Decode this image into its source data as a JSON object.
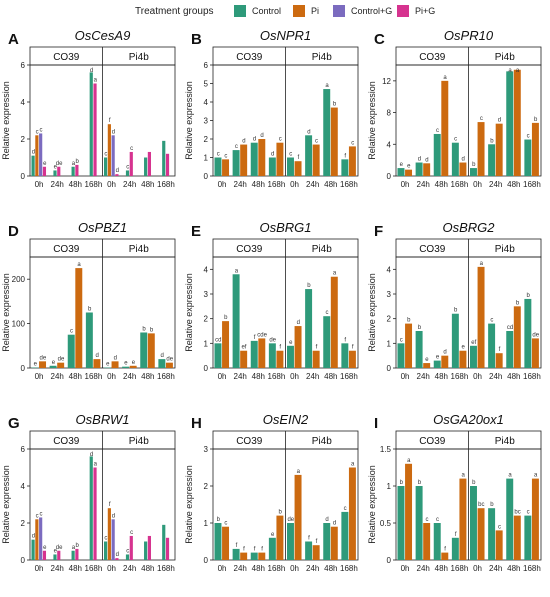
{
  "legend": {
    "title": "Treatment groups",
    "items": [
      {
        "name": "Control",
        "color": "#2e9a7a"
      },
      {
        "name": "Pi",
        "color": "#cc6a10"
      },
      {
        "name": "Control+G",
        "color": "#7b6bbf"
      },
      {
        "name": "Pi+G",
        "color": "#d6338f"
      }
    ]
  },
  "chart_data": [
    {
      "type": "bar",
      "letter": "A",
      "title": "OsCesA9",
      "ylabel": "Relative expression",
      "facets": [
        "CO39",
        "Pi4b"
      ],
      "categories": [
        "0h",
        "24h",
        "48h",
        "168h"
      ],
      "ylim": [
        0,
        6
      ],
      "yticks": [
        0,
        2,
        4,
        6
      ],
      "series": [
        {
          "name": "Control",
          "values": [
            [
              1.1,
              0.3,
              0.5,
              5.6
            ],
            [
              1.0,
              0.3,
              1.0,
              1.9
            ]
          ]
        },
        {
          "name": "Pi",
          "values": [
            [
              2.2,
              null,
              null,
              null
            ],
            [
              2.8,
              null,
              null,
              null
            ]
          ]
        },
        {
          "name": "Control+G",
          "values": [
            [
              2.3,
              null,
              null,
              null
            ],
            [
              2.2,
              null,
              null,
              null
            ]
          ]
        },
        {
          "name": "Pi+G",
          "values": [
            [
              0.5,
              0.5,
              0.6,
              5.0
            ],
            [
              0.1,
              1.3,
              1.3,
              1.2
            ]
          ]
        }
      ],
      "labels": [
        "d",
        "c",
        "c",
        "e",
        "e",
        "de",
        "a",
        "b",
        "d",
        "a",
        "c",
        "f",
        "d",
        "d",
        "c",
        "c"
      ]
    },
    {
      "type": "bar",
      "letter": "B",
      "title": "OsNPR1",
      "ylabel": "Relative expression",
      "facets": [
        "CO39",
        "Pi4b"
      ],
      "categories": [
        "0h",
        "24h",
        "48h",
        "168h"
      ],
      "ylim": [
        0,
        6
      ],
      "yticks": [
        0,
        1,
        2,
        3,
        4,
        5,
        6
      ],
      "series": [
        {
          "name": "Control",
          "values": [
            [
              1.0,
              1.4,
              1.8,
              1.0
            ],
            [
              1.0,
              2.2,
              4.7,
              0.9
            ]
          ]
        },
        {
          "name": "Pi",
          "values": [
            [
              0.9,
              1.7,
              2.0,
              1.8
            ],
            [
              0.8,
              1.7,
              3.7,
              1.6
            ]
          ]
        },
        {
          "name": "Control+G",
          "values": [
            [
              null,
              null,
              null,
              null
            ],
            [
              null,
              null,
              null,
              null
            ]
          ]
        },
        {
          "name": "Pi+G",
          "values": [
            [
              null,
              null,
              null,
              null
            ],
            [
              null,
              null,
              null,
              null
            ]
          ]
        }
      ],
      "labels": [
        "c",
        "c",
        "c",
        "d",
        "d",
        "d",
        "d",
        "c",
        "c",
        "f",
        "d",
        "c",
        "a",
        "b",
        "f",
        "c"
      ]
    },
    {
      "type": "bar",
      "letter": "C",
      "title": "OsPR10",
      "ylabel": "Relative expression",
      "facets": [
        "CO39",
        "Pi4b"
      ],
      "categories": [
        "0h",
        "24h",
        "48h",
        "168h"
      ],
      "ylim": [
        0,
        14
      ],
      "yticks": [
        0,
        4,
        8,
        12
      ],
      "series": [
        {
          "name": "Control",
          "values": [
            [
              1.0,
              1.7,
              5.3,
              4.2
            ],
            [
              1.0,
              4.0,
              13.2,
              4.6
            ]
          ]
        },
        {
          "name": "Pi",
          "values": [
            [
              0.8,
              1.6,
              12.0,
              1.7
            ],
            [
              6.8,
              6.6,
              13.4,
              6.7
            ]
          ]
        },
        {
          "name": "Control+G",
          "values": [
            [
              null,
              null,
              null,
              null
            ],
            [
              null,
              null,
              null,
              null
            ]
          ]
        },
        {
          "name": "Pi+G",
          "values": [
            [
              null,
              null,
              null,
              null
            ],
            [
              null,
              null,
              null,
              null
            ]
          ]
        }
      ],
      "labels": [
        "e",
        "e",
        "d",
        "d",
        "c",
        "a",
        "c",
        "d",
        "b",
        "c",
        "b",
        "d",
        "a",
        "a",
        "c",
        "b"
      ]
    },
    {
      "type": "bar",
      "letter": "D",
      "title": "OsPBZ1",
      "ylabel": "Relative expression",
      "facets": [
        "CO39",
        "Pi4b"
      ],
      "categories": [
        "0h",
        "24h",
        "48h",
        "168h"
      ],
      "ylim": [
        0,
        250
      ],
      "yticks": [
        0,
        100,
        200
      ],
      "series": [
        {
          "name": "Control",
          "values": [
            [
              1,
              5,
              75,
              125
            ],
            [
              1,
              3,
              80,
              20
            ]
          ]
        },
        {
          "name": "Pi",
          "values": [
            [
              15,
              12,
              225,
              20
            ],
            [
              15,
              5,
              78,
              12
            ]
          ]
        },
        {
          "name": "Control+G",
          "values": [
            [
              null,
              null,
              null,
              null
            ],
            [
              null,
              null,
              null,
              null
            ]
          ]
        },
        {
          "name": "Pi+G",
          "values": [
            [
              null,
              null,
              null,
              null
            ],
            [
              null,
              null,
              null,
              null
            ]
          ]
        }
      ],
      "labels": [
        "e",
        "de",
        "e",
        "de",
        "c",
        "a",
        "b",
        "d",
        "e",
        "d",
        "e",
        "e",
        "b",
        "b",
        "d",
        "de"
      ]
    },
    {
      "type": "bar",
      "letter": "E",
      "title": "OsBRG1",
      "ylabel": "Relative expression",
      "facets": [
        "CO39",
        "Pi4b"
      ],
      "categories": [
        "0h",
        "24h",
        "48h",
        "168h"
      ],
      "ylim": [
        0,
        4.5
      ],
      "yticks": [
        0,
        1,
        2,
        3,
        4
      ],
      "series": [
        {
          "name": "Control",
          "values": [
            [
              1.0,
              3.8,
              1.1,
              1.0
            ],
            [
              0.9,
              3.2,
              2.1,
              1.0
            ]
          ]
        },
        {
          "name": "Pi",
          "values": [
            [
              1.9,
              0.7,
              1.2,
              0.7
            ],
            [
              1.7,
              0.7,
              3.7,
              0.7
            ]
          ]
        },
        {
          "name": "Control+G",
          "values": [
            [
              null,
              null,
              null,
              null
            ],
            [
              null,
              null,
              null,
              null
            ]
          ]
        },
        {
          "name": "Pi+G",
          "values": [
            [
              null,
              null,
              null,
              null
            ],
            [
              null,
              null,
              null,
              null
            ]
          ]
        }
      ],
      "labels": [
        "cd",
        "b",
        "a",
        "ef",
        "f",
        "cde",
        "de",
        "f",
        "e",
        "d",
        "b",
        "f",
        "c",
        "a",
        "f",
        "f"
      ]
    },
    {
      "type": "bar",
      "letter": "F",
      "title": "OsBRG2",
      "ylabel": "Relative expression",
      "facets": [
        "CO39",
        "Pi4b"
      ],
      "categories": [
        "0h",
        "24h",
        "48h",
        "168h"
      ],
      "ylim": [
        0,
        4.5
      ],
      "yticks": [
        0,
        1,
        2,
        3,
        4
      ],
      "series": [
        {
          "name": "Control",
          "values": [
            [
              1.0,
              1.5,
              0.3,
              2.2
            ],
            [
              0.9,
              1.8,
              1.5,
              2.8
            ]
          ]
        },
        {
          "name": "Pi",
          "values": [
            [
              1.8,
              0.2,
              0.5,
              0.7
            ],
            [
              4.1,
              0.6,
              2.5,
              1.2
            ]
          ]
        },
        {
          "name": "Control+G",
          "values": [
            [
              null,
              null,
              null,
              null
            ],
            [
              null,
              null,
              null,
              null
            ]
          ]
        },
        {
          "name": "Pi+G",
          "values": [
            [
              null,
              null,
              null,
              null
            ],
            [
              null,
              null,
              null,
              null
            ]
          ]
        }
      ],
      "labels": [
        "c",
        "b",
        "b",
        "e",
        "e",
        "d",
        "b",
        "e",
        "ef",
        "a",
        "c",
        "f",
        "cd",
        "b",
        "b",
        "de"
      ]
    },
    {
      "type": "bar",
      "letter": "G",
      "title": "OsBRW1",
      "ylabel": "Relative expression",
      "facets": [
        "CO39",
        "Pi4b"
      ],
      "categories": [
        "0h",
        "24h",
        "48h",
        "168h"
      ],
      "ylim": [
        0,
        6
      ],
      "yticks": [
        0,
        2,
        4,
        6
      ],
      "series": [
        {
          "name": "Control",
          "values": [
            [
              1.1,
              0.3,
              0.5,
              5.6
            ],
            [
              1.0,
              0.3,
              1.0,
              1.9
            ]
          ]
        },
        {
          "name": "Pi",
          "values": [
            [
              2.2,
              null,
              null,
              null
            ],
            [
              2.8,
              null,
              null,
              null
            ]
          ]
        },
        {
          "name": "Control+G",
          "values": [
            [
              2.3,
              null,
              null,
              null
            ],
            [
              2.2,
              null,
              null,
              null
            ]
          ]
        },
        {
          "name": "Pi+G",
          "values": [
            [
              0.5,
              0.5,
              0.6,
              5.0
            ],
            [
              0.1,
              1.3,
              1.3,
              1.2
            ]
          ]
        }
      ],
      "labels": [
        "d",
        "c",
        "c",
        "e",
        "e",
        "de",
        "a",
        "b",
        "d",
        "a",
        "c",
        "f",
        "d",
        "d",
        "c",
        "c"
      ]
    },
    {
      "type": "bar",
      "letter": "H",
      "title": "OsEIN2",
      "ylabel": "Relative expression",
      "facets": [
        "CO39",
        "Pi4b"
      ],
      "categories": [
        "0h",
        "24h",
        "48h",
        "168h"
      ],
      "ylim": [
        0,
        3
      ],
      "yticks": [
        0,
        1,
        2,
        3
      ],
      "series": [
        {
          "name": "Control",
          "values": [
            [
              1.0,
              0.3,
              0.2,
              0.6
            ],
            [
              1.0,
              0.5,
              1.0,
              1.3
            ]
          ]
        },
        {
          "name": "Pi",
          "values": [
            [
              0.9,
              0.2,
              0.2,
              1.2
            ],
            [
              2.3,
              0.4,
              0.9,
              2.5
            ]
          ]
        },
        {
          "name": "Control+G",
          "values": [
            [
              null,
              null,
              null,
              null
            ],
            [
              null,
              null,
              null,
              null
            ]
          ]
        },
        {
          "name": "Pi+G",
          "values": [
            [
              null,
              null,
              null,
              null
            ],
            [
              null,
              null,
              null,
              null
            ]
          ]
        }
      ],
      "labels": [
        "b",
        "c",
        "f",
        "f",
        "f",
        "f",
        "e",
        "b",
        "de",
        "a",
        "f",
        "f",
        "d",
        "d",
        "c",
        "a"
      ]
    },
    {
      "type": "bar",
      "letter": "I",
      "title": "OsGA20ox1",
      "ylabel": "Relative expression",
      "facets": [
        "CO39",
        "Pi4b"
      ],
      "categories": [
        "0h",
        "24h",
        "48h",
        "168h"
      ],
      "ylim": [
        0,
        1.5
      ],
      "yticks": [
        0,
        0.5,
        1.0,
        1.5
      ],
      "series": [
        {
          "name": "Control",
          "values": [
            [
              1.0,
              1.0,
              0.5,
              0.3
            ],
            [
              1.0,
              0.7,
              1.1,
              0.6
            ]
          ]
        },
        {
          "name": "Pi",
          "values": [
            [
              1.3,
              0.5,
              0.1,
              1.1
            ],
            [
              0.7,
              0.4,
              0.6,
              1.1
            ]
          ]
        },
        {
          "name": "Control+G",
          "values": [
            [
              null,
              null,
              null,
              null
            ],
            [
              null,
              null,
              null,
              null
            ]
          ]
        },
        {
          "name": "Pi+G",
          "values": [
            [
              null,
              null,
              null,
              null
            ],
            [
              null,
              null,
              null,
              null
            ]
          ]
        }
      ],
      "labels": [
        "b",
        "a",
        "b",
        "c",
        "c",
        "f",
        "f",
        "a",
        "b",
        "bc",
        "b",
        "c",
        "a",
        "bc",
        "c",
        "a"
      ]
    }
  ]
}
